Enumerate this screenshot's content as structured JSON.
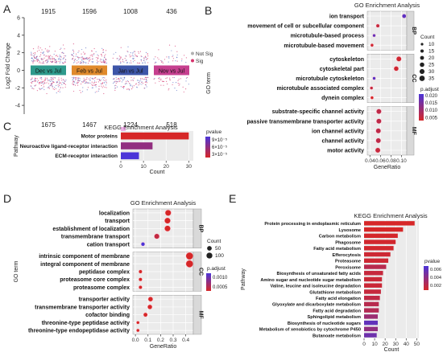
{
  "panel_letters": [
    "A",
    "B",
    "C",
    "D",
    "E"
  ],
  "chart_data": [
    {
      "id": "A",
      "type": "scatter",
      "title": "",
      "ylabel": "Log2 Fold Change",
      "ylim": [
        -5,
        6
      ],
      "yticks": [
        -4,
        -2,
        0,
        2,
        4,
        6
      ],
      "groups": [
        {
          "label": "Dec vs Jul",
          "up": 1915,
          "down": 1675,
          "color": "#2e9a8c"
        },
        {
          "label": "Feb vs Jul",
          "up": 1596,
          "down": 1467,
          "color": "#e08a2c"
        },
        {
          "label": "Jan vs Jul",
          "up": 1008,
          "down": 1224,
          "color": "#3d55a8"
        },
        {
          "label": "Nov vs Jul",
          "up": 436,
          "down": 518,
          "color": "#c63f8f"
        }
      ],
      "legend": [
        {
          "label": "Not Sig",
          "color": "#b0b0b0"
        },
        {
          "label": "Sig",
          "color": "#d6336c"
        }
      ]
    },
    {
      "id": "B",
      "type": "scatter",
      "title": "GO Enrichment Analysis",
      "xlabel": "GeneRatio",
      "ylabel": "GO term",
      "xlim": [
        0.035,
        0.11
      ],
      "xticks": [
        0.04,
        0.06,
        0.08,
        0.1
      ],
      "xtick_labels": [
        "0.04",
        "0.06",
        "0.08",
        "0.10"
      ],
      "facets": [
        {
          "name": "BP",
          "terms": [
            {
              "term": "ion transport",
              "x": 0.105,
              "count": 16,
              "padj": 0.018
            },
            {
              "term": "movement of cell or subcellular component",
              "x": 0.055,
              "count": 12,
              "padj": 0.005
            },
            {
              "term": "microtubule-based process",
              "x": 0.048,
              "count": 10,
              "padj": 0.017
            },
            {
              "term": "microtubule-based movement",
              "x": 0.044,
              "count": 10,
              "padj": 0.004
            }
          ]
        },
        {
          "name": "CC",
          "terms": [
            {
              "term": "cytoskeleton",
              "x": 0.095,
              "count": 22,
              "padj": 0.004
            },
            {
              "term": "cytoskeletal part",
              "x": 0.09,
              "count": 20,
              "padj": 0.004
            },
            {
              "term": "microtubule cytoskeleton",
              "x": 0.048,
              "count": 10,
              "padj": 0.018
            },
            {
              "term": "microtubule associated complex",
              "x": 0.043,
              "count": 10,
              "padj": 0.005
            },
            {
              "term": "dynein complex",
              "x": 0.044,
              "count": 10,
              "padj": 0.003
            }
          ]
        },
        {
          "name": "MF",
          "terms": [
            {
              "term": "substrate-specific channel activity",
              "x": 0.057,
              "count": 22,
              "padj": 0.006
            },
            {
              "term": "passive transmembrane transporter activity",
              "x": 0.057,
              "count": 22,
              "padj": 0.006
            },
            {
              "term": "ion channel activity",
              "x": 0.056,
              "count": 22,
              "padj": 0.006
            },
            {
              "term": "channel activity",
              "x": 0.056,
              "count": 22,
              "padj": 0.006
            },
            {
              "term": "motor activity",
              "x": 0.055,
              "count": 22,
              "padj": 0.005
            }
          ]
        }
      ],
      "size_legend": {
        "title": "Count",
        "values": [
          10,
          15,
          20,
          25,
          30,
          35
        ]
      },
      "color_legend": {
        "title": "p.adjust",
        "ticks": [
          0.02,
          0.015,
          0.01,
          0.005
        ],
        "tick_labels": [
          "0.020",
          "0.015",
          "0.010",
          "0.005"
        ],
        "low": "#d62728",
        "high": "#4b35d8"
      }
    },
    {
      "id": "C",
      "type": "bar",
      "title": "KEGG Enrichment Analysis",
      "xlabel": "Count",
      "ylabel": "Pathway",
      "xlim": [
        0,
        32
      ],
      "xticks": [
        0,
        10,
        20,
        30
      ],
      "categories": [
        "Motor proteins",
        "Neuroactive ligand-receptor interaction",
        "ECM-receptor interaction"
      ],
      "values": [
        30,
        14,
        8
      ],
      "pvalues": [
        3e-05,
        6e-05,
        9e-05
      ],
      "color_legend": {
        "title": "pvalue",
        "tick_labels": [
          "9×10⁻⁵",
          "6×10⁻⁵",
          "3×10⁻⁵"
        ],
        "low": "#d62728",
        "high": "#4b35d8"
      }
    },
    {
      "id": "D",
      "type": "scatter",
      "title": "GO Enrichment Analysis",
      "xlabel": "GeneRatio",
      "ylabel": "GO term",
      "xlim": [
        -0.02,
        0.46
      ],
      "xticks": [
        0.0,
        0.1,
        0.2,
        0.3,
        0.4
      ],
      "xtick_labels": [
        "0.0",
        "0.1",
        "0.2",
        "0.3",
        "0.4"
      ],
      "facets": [
        {
          "name": "BP",
          "terms": [
            {
              "term": "localization",
              "x": 0.26,
              "count": 60,
              "padj": 0.0004
            },
            {
              "term": "transport",
              "x": 0.255,
              "count": 58,
              "padj": 0.0004
            },
            {
              "term": "establishment of localization",
              "x": 0.255,
              "count": 58,
              "padj": 0.0004
            },
            {
              "term": "transmembrane transport",
              "x": 0.17,
              "count": 40,
              "padj": 0.0005
            },
            {
              "term": "cation transport",
              "x": 0.06,
              "count": 15,
              "padj": 0.0011
            }
          ]
        },
        {
          "name": "CC",
          "terms": [
            {
              "term": "intrinsic component of membrane",
              "x": 0.43,
              "count": 100,
              "padj": 0.0004
            },
            {
              "term": "integral component of membrane",
              "x": 0.43,
              "count": 100,
              "padj": 0.0004
            },
            {
              "term": "peptidase complex",
              "x": 0.04,
              "count": 10,
              "padj": 0.0004
            },
            {
              "term": "proteasome core complex",
              "x": 0.04,
              "count": 10,
              "padj": 0.0004
            },
            {
              "term": "proteasome complex",
              "x": 0.04,
              "count": 10,
              "padj": 0.0004
            }
          ]
        },
        {
          "name": "MF",
          "terms": [
            {
              "term": "transporter activity",
              "x": 0.12,
              "count": 30,
              "padj": 0.0004
            },
            {
              "term": "transmembrane transporter activity",
              "x": 0.115,
              "count": 28,
              "padj": 0.0004
            },
            {
              "term": "cofactor binding",
              "x": 0.08,
              "count": 20,
              "padj": 0.0004
            },
            {
              "term": "threonine-type peptidase activity",
              "x": 0.02,
              "count": 6,
              "padj": 0.0004
            },
            {
              "term": "threonine-type endopeptidase activity",
              "x": 0.02,
              "count": 6,
              "padj": 0.0004
            }
          ]
        }
      ],
      "size_legend": {
        "title": "Count",
        "values": [
          50,
          100
        ]
      },
      "color_legend": {
        "title": "p.adjust",
        "ticks": [
          0.001,
          0.0005
        ],
        "tick_labels": [
          "0.0010",
          "0.0005"
        ],
        "low": "#d62728",
        "high": "#4b35d8"
      }
    },
    {
      "id": "E",
      "type": "bar",
      "title": "KEGG Enrichment Analysis",
      "xlabel": "Count",
      "ylabel": "Pathway",
      "xlim": [
        0,
        52
      ],
      "xticks": [
        0,
        10,
        20,
        30,
        40,
        50
      ],
      "categories": [
        "Protein processing in endoplasmic reticulum",
        "Lysosome",
        "Carbon metabolism",
        "Phagosome",
        "Fatty acid metabolism",
        "Efferocytosis",
        "Proteasome",
        "Peroxisome",
        "Biosynthesis of unsaturated fatty acids",
        "Amino sugar and nucleotide sugar metabolism",
        "Valine, leucine and isoleucine degradation",
        "Glutathione metabolism",
        "Fatty acid elongation",
        "Glyoxylate and dicarboxylate metabolism",
        "Fatty acid degradation",
        "Sphingolipid metabolism",
        "Biosynthesis of nucleotide sugars",
        "Metabolism of xenobiotics by cytochrome P450",
        "Butanoate metabolism"
      ],
      "values": [
        48,
        37,
        32,
        30,
        28,
        25,
        23,
        21,
        18,
        17,
        17,
        16,
        15,
        14,
        14,
        13,
        13,
        13,
        12
      ],
      "pvalues": [
        0.0005,
        0.0005,
        0.0006,
        0.0007,
        0.0007,
        0.0009,
        0.0009,
        0.0018,
        0.0012,
        0.001,
        0.001,
        0.0012,
        0.0015,
        0.0018,
        0.002,
        0.003,
        0.0055,
        0.0035,
        0.005
      ],
      "color_legend": {
        "title": "pvalue",
        "ticks": [
          0.006,
          0.004,
          0.002
        ],
        "tick_labels": [
          "0.006",
          "0.004",
          "0.002"
        ],
        "low": "#d62728",
        "high": "#4b35d8"
      }
    }
  ]
}
